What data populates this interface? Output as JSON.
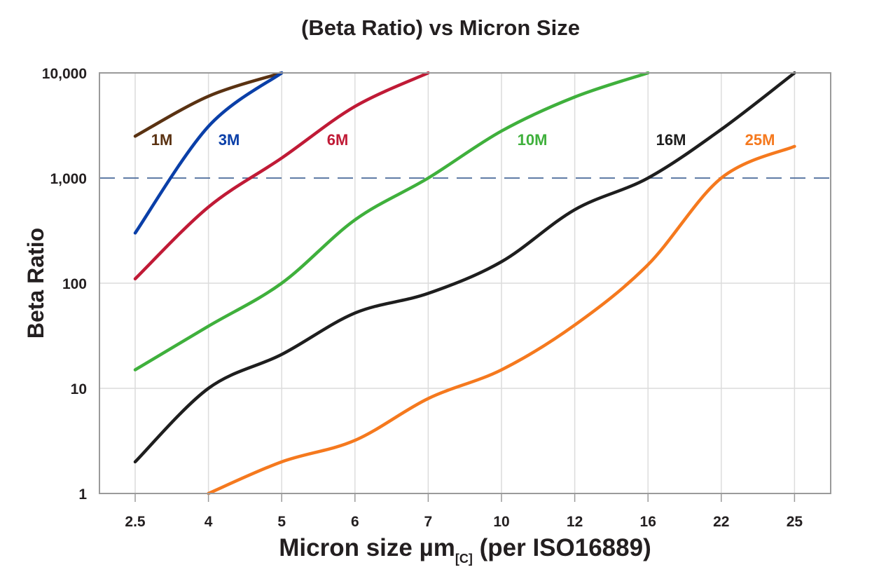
{
  "chart_data": {
    "type": "line",
    "title": "(Beta Ratio) vs Micron Size",
    "xlabel_main": "Micron size µm",
    "xlabel_sub": "[C]",
    "xlabel_tail": " (per ISO16889)",
    "ylabel": "Beta Ratio",
    "y_scale": "log",
    "ylim": [
      1,
      10000
    ],
    "y_ticks": [
      1,
      10,
      100,
      1000,
      10000
    ],
    "y_tick_labels": [
      "1",
      "10",
      "100",
      "1,000",
      "10,000"
    ],
    "categories": [
      "2.5",
      "4",
      "5",
      "6",
      "7",
      "10",
      "12",
      "16",
      "22",
      "25"
    ],
    "grid": true,
    "reference_line": {
      "y": 1000,
      "style": "dashed",
      "color": "#4a6a9a"
    },
    "series": [
      {
        "name": "1M",
        "color": "#5a3212",
        "values": [
          2500,
          6000,
          10000,
          null,
          null,
          null,
          null,
          null,
          null,
          null
        ]
      },
      {
        "name": "3M",
        "color": "#0a3fa8",
        "values": [
          300,
          3100,
          10000,
          null,
          null,
          null,
          null,
          null,
          null,
          null
        ]
      },
      {
        "name": "6M",
        "color": "#c01a36",
        "values": [
          110,
          530,
          1550,
          4800,
          10000,
          null,
          null,
          null,
          null,
          null
        ]
      },
      {
        "name": "10M",
        "color": "#3fb03c",
        "values": [
          15,
          39,
          100,
          400,
          1000,
          2800,
          5900,
          10000,
          null,
          null
        ]
      },
      {
        "name": "16M",
        "color": "#1e1e1e",
        "values": [
          2,
          10,
          21,
          52,
          80,
          160,
          500,
          1000,
          2900,
          10000
        ]
      },
      {
        "name": "25M",
        "color": "#f5791e",
        "values": [
          null,
          1,
          2,
          3.2,
          8,
          15,
          40,
          150,
          1000,
          2000
        ]
      }
    ]
  }
}
